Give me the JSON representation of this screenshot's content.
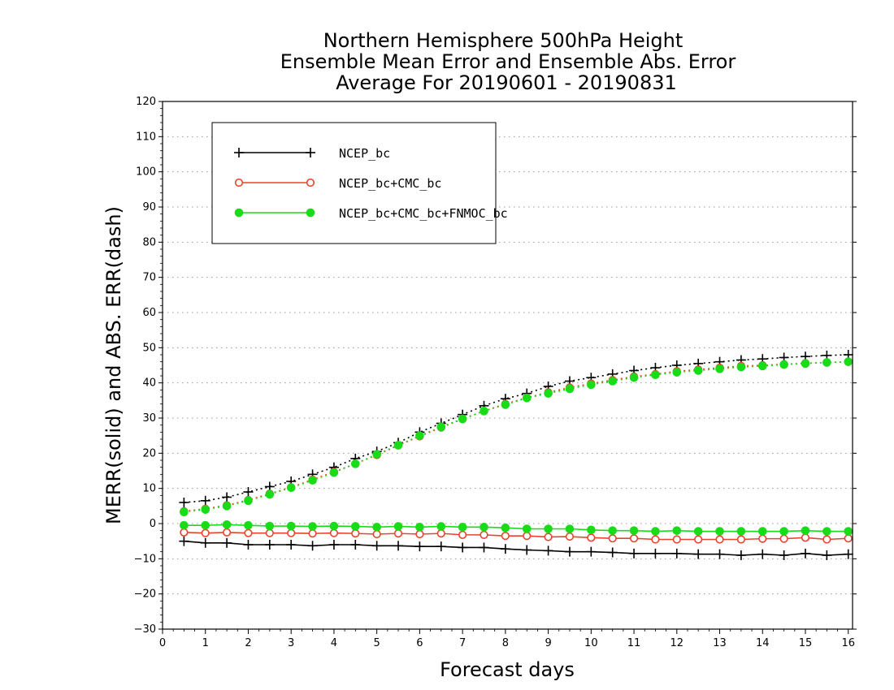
{
  "chart_data": {
    "type": "line",
    "title_lines": [
      "Northern Hemisphere 500hPa Height",
      "Ensemble Mean Error and Ensemble Abs. Error",
      "Average For 20190601 - 20190831"
    ],
    "xlabel": "Forecast days",
    "ylabel": "MERR(solid) and ABS. ERR(dash)",
    "xlim": [
      0,
      16.1
    ],
    "ylim": [
      -30,
      120
    ],
    "xticks": [
      0,
      1,
      2,
      3,
      4,
      5,
      6,
      7,
      8,
      9,
      10,
      11,
      12,
      13,
      14,
      15,
      16
    ],
    "yticks": [
      -30,
      -20,
      -10,
      0,
      10,
      20,
      30,
      40,
      50,
      60,
      70,
      80,
      90,
      100,
      110,
      120
    ],
    "grid": "horizontal dotted",
    "legend_position": "top-left",
    "x": [
      0.5,
      1.0,
      1.5,
      2.0,
      2.5,
      3.0,
      3.5,
      4.0,
      4.5,
      5.0,
      5.5,
      6.0,
      6.5,
      7.0,
      7.5,
      8.0,
      8.5,
      9.0,
      9.5,
      10.0,
      10.5,
      11.0,
      11.5,
      12.0,
      12.5,
      13.0,
      13.5,
      14.0,
      14.5,
      15.0,
      15.5,
      16.0
    ],
    "series": [
      {
        "name": "NCEP_bc",
        "color": "#000000",
        "marker": "plus",
        "merr": [
          -5,
          -5.5,
          -5.5,
          -6,
          -6,
          -6,
          -6.3,
          -6,
          -6,
          -6.3,
          -6.3,
          -6.5,
          -6.5,
          -6.8,
          -6.8,
          -7.2,
          -7.5,
          -7.7,
          -8,
          -8,
          -8.2,
          -8.5,
          -8.5,
          -8.5,
          -8.7,
          -8.7,
          -9,
          -8.7,
          -9,
          -8.5,
          -9,
          -8.7
        ],
        "abs_err": [
          6,
          6.5,
          7.5,
          9,
          10.5,
          12,
          14,
          16,
          18.5,
          20.5,
          23,
          26,
          28.5,
          31,
          33.5,
          35.5,
          37,
          39,
          40.5,
          41.5,
          42.5,
          43.5,
          44.3,
          45,
          45.5,
          46,
          46.5,
          46.8,
          47.2,
          47.5,
          47.8,
          48
        ]
      },
      {
        "name": "NCEP_bc+CMC_bc",
        "color": "#e8432d",
        "marker": "open-circle",
        "merr": [
          -2.5,
          -2.7,
          -2.5,
          -2.7,
          -2.7,
          -2.7,
          -2.8,
          -2.7,
          -2.8,
          -3,
          -2.8,
          -3,
          -2.8,
          -3.2,
          -3.2,
          -3.5,
          -3.5,
          -3.8,
          -3.7,
          -4,
          -4.2,
          -4.2,
          -4.5,
          -4.5,
          -4.5,
          -4.5,
          -4.5,
          -4.3,
          -4.3,
          -4,
          -4.5,
          -4.2
        ],
        "abs_err": [
          3.5,
          4.2,
          5.2,
          6.7,
          8.5,
          10.3,
          12.5,
          14.7,
          17,
          19.5,
          22.2,
          24.8,
          27.3,
          29.7,
          32,
          34,
          35.8,
          37.3,
          38.7,
          39.8,
          40.8,
          41.8,
          42.5,
          43.3,
          43.8,
          44.3,
          44.8,
          45,
          45.3,
          45.6,
          45.8,
          46
        ]
      },
      {
        "name": "NCEP_bc+CMC_bc+FNMOC_bc",
        "color": "#18dc18",
        "marker": "filled-circle",
        "merr": [
          -0.5,
          -0.5,
          -0.3,
          -0.5,
          -0.7,
          -0.7,
          -0.8,
          -0.7,
          -0.8,
          -1,
          -0.8,
          -1,
          -0.8,
          -1,
          -1,
          -1.2,
          -1.5,
          -1.5,
          -1.5,
          -1.8,
          -2,
          -2,
          -2.2,
          -2,
          -2.2,
          -2.2,
          -2.2,
          -2.2,
          -2.2,
          -2,
          -2.2,
          -2.2
        ],
        "abs_err": [
          3.3,
          4,
          5,
          6.5,
          8.3,
          10.2,
          12.3,
          14.5,
          17,
          19.7,
          22.3,
          25,
          27.5,
          29.8,
          32,
          33.8,
          35.7,
          37,
          38.3,
          39.5,
          40.5,
          41.5,
          42.3,
          43,
          43.5,
          44,
          44.5,
          44.8,
          45.2,
          45.5,
          45.8,
          46
        ]
      }
    ]
  }
}
